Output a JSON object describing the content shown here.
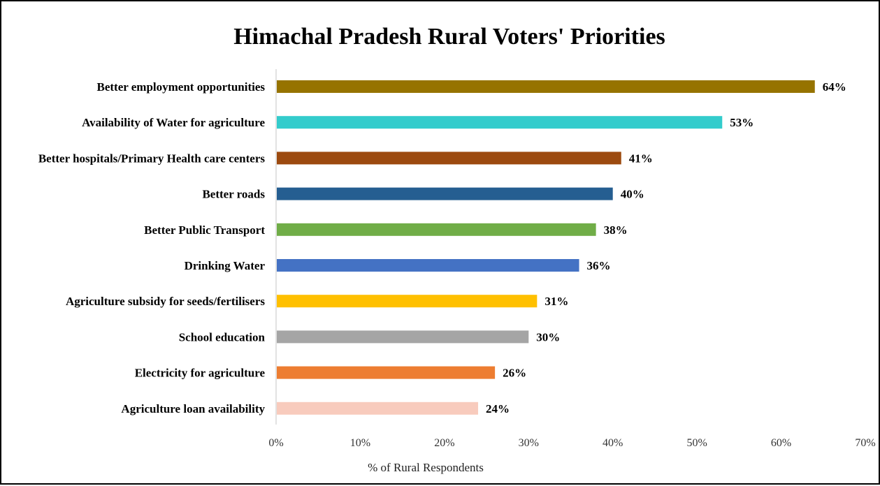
{
  "chart_data": {
    "type": "bar",
    "orientation": "horizontal",
    "title": "Himachal Pradesh Rural Voters' Priorities",
    "xlabel": "% of Rural Respondents",
    "ylabel": "",
    "xlim": [
      0,
      70
    ],
    "x_tick_values": [
      0,
      10,
      20,
      30,
      40,
      50,
      60,
      70
    ],
    "x_tick_labels": [
      "0%",
      "10%",
      "20%",
      "30%",
      "40%",
      "50%",
      "60%",
      "70%"
    ],
    "grid": false,
    "legend": "none",
    "categories": [
      "Better employment opportunities",
      "Availability of Water for agriculture",
      "Better hospitals/Primary Health care centers",
      "Better roads",
      "Better Public Transport",
      "Drinking Water",
      "Agriculture subsidy for seeds/fertilisers",
      "School education",
      "Electricity for agriculture",
      "Agriculture loan availability"
    ],
    "values": [
      64,
      53,
      41,
      40,
      38,
      36,
      31,
      30,
      26,
      24
    ],
    "value_labels": [
      "64%",
      "53%",
      "41%",
      "40%",
      "38%",
      "36%",
      "31%",
      "30%",
      "26%",
      "24%"
    ],
    "colors": [
      "#967300",
      "#33CCCC",
      "#9C4A0F",
      "#255E91",
      "#70AD47",
      "#4472C4",
      "#FFC000",
      "#A5A5A5",
      "#ED7D31",
      "#F8CBBD"
    ]
  }
}
